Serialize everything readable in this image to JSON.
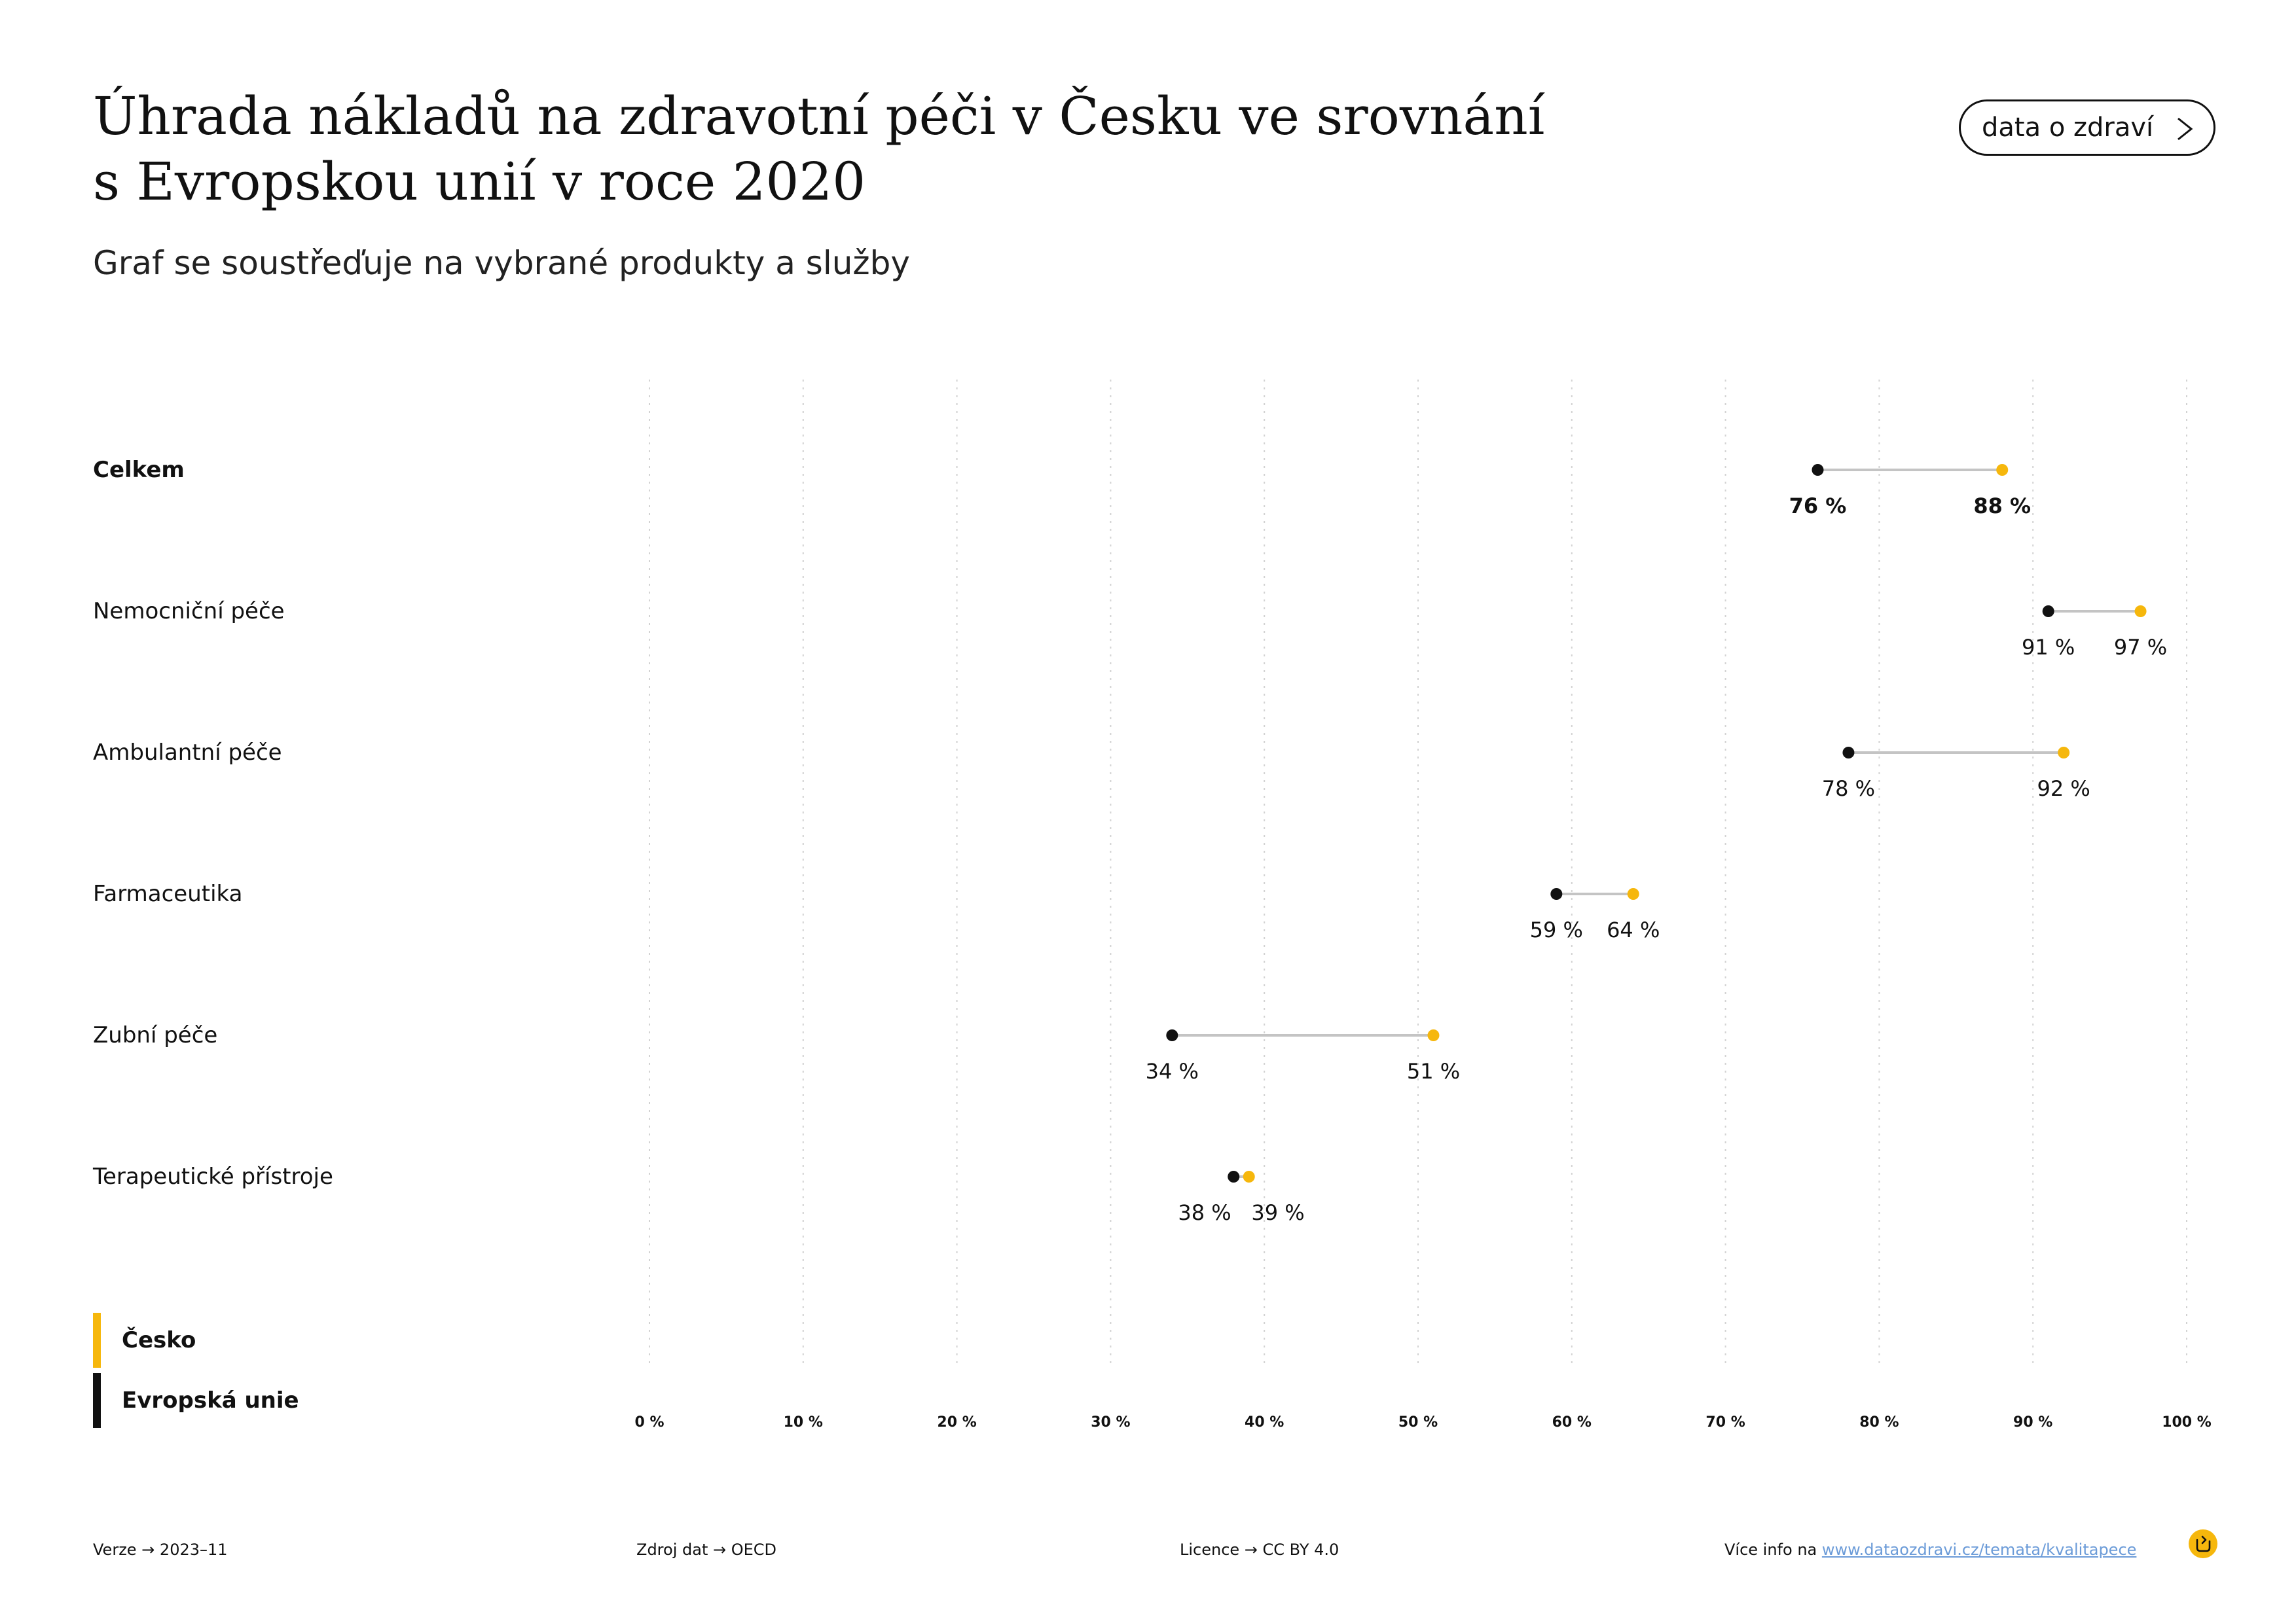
{
  "header": {
    "title_line1": "Úhrada nákladů na zdravotní péči v Česku ve srovnání",
    "title_line2": "s Evropskou unií v roce 2020",
    "subtitle": "Graf se soustřeďuje na vybrané produkty a služby",
    "button_label": "data o zdraví"
  },
  "chart_data": {
    "type": "dumbbell",
    "categories": [
      "Celkem",
      "Nemocniční péče",
      "Ambulantní péče",
      "Farmaceutika",
      "Zubní péče",
      "Terapeutické přístroje"
    ],
    "series": [
      {
        "name": "Česko",
        "color": "#f6b70c",
        "values": [
          88,
          97,
          92,
          64,
          51,
          39
        ],
        "labels": [
          "88 %",
          "97 %",
          "92 %",
          "64 %",
          "51 %",
          "39 %"
        ]
      },
      {
        "name": "Evropská unie",
        "color": "#111111",
        "values": [
          76,
          91,
          78,
          59,
          34,
          38
        ],
        "labels": [
          "76 %",
          "91 %",
          "78 %",
          "59 %",
          "34 %",
          "38 %"
        ]
      }
    ],
    "xlim": [
      0,
      100
    ],
    "x_ticks": [
      0,
      10,
      20,
      30,
      40,
      50,
      60,
      70,
      80,
      90,
      100
    ],
    "x_tick_labels": [
      "0 %",
      "10 %",
      "20 %",
      "30 %",
      "40 %",
      "50 %",
      "60 %",
      "70 %",
      "80 %",
      "90 %",
      "100 %"
    ],
    "grid": "vertical-dotted",
    "connector_color": "#c4c4c4",
    "legend_placement": "bottom-left"
  },
  "legend": {
    "czech": "Česko",
    "eu": "Evropská unie"
  },
  "footer": {
    "version": "Verze → 2023–11",
    "source": "Zdroj dat → OECD",
    "license": "Licence → CC BY 4.0",
    "more_info_prefix": "Více info na ",
    "more_info_link": "www.dataozdravi.cz/temata/kvalitapece"
  }
}
